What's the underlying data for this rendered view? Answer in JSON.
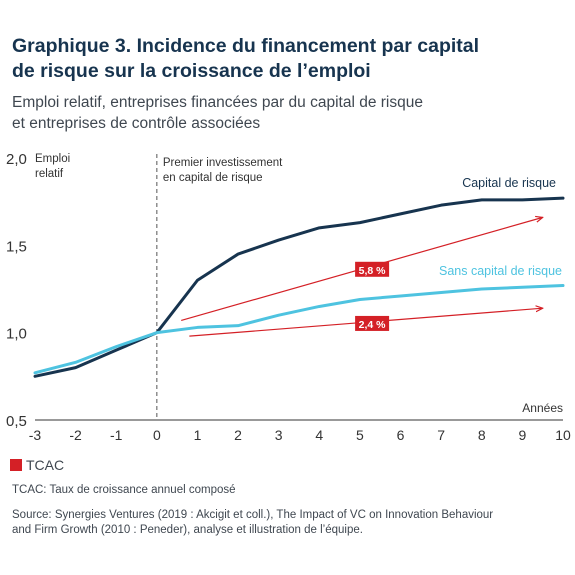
{
  "header": {
    "title_lines": [
      "Graphique 3. Incidence du financement par capital",
      "de risque sur la croissance de l’emploi"
    ],
    "subtitle_lines": [
      "Emploi relatif, entreprises financées par du capital de risque",
      "et entreprises de contrôle associées"
    ]
  },
  "chart_data": {
    "type": "line",
    "x": [
      -3,
      -2,
      -1,
      0,
      1,
      2,
      3,
      4,
      5,
      6,
      7,
      8,
      9,
      10
    ],
    "xlim": [
      -3,
      10
    ],
    "ylim": [
      0.5,
      2.0
    ],
    "xticks": [
      "-3",
      "-2",
      "-1",
      "0",
      "1",
      "2",
      "3",
      "4",
      "5",
      "6",
      "7",
      "8",
      "9",
      "10"
    ],
    "yticks": [
      {
        "value": 2.0,
        "label": "2,0"
      },
      {
        "value": 1.5,
        "label": "1,5"
      },
      {
        "value": 1.0,
        "label": "1,0"
      },
      {
        "value": 0.5,
        "label": "0,5"
      }
    ],
    "ylabel_lines": [
      "Emploi",
      "relatif"
    ],
    "xlabel": "Années",
    "grid": false,
    "series": [
      {
        "name": "Capital de risque",
        "color": "#17344f",
        "values": [
          0.75,
          0.8,
          0.9,
          1.0,
          1.3,
          1.45,
          1.53,
          1.6,
          1.63,
          1.68,
          1.73,
          1.76,
          1.76,
          1.77
        ]
      },
      {
        "name": "Sans capital de risque",
        "color": "#4ec3e0",
        "values": [
          0.77,
          0.83,
          0.92,
          1.0,
          1.03,
          1.04,
          1.1,
          1.15,
          1.19,
          1.21,
          1.23,
          1.25,
          1.26,
          1.27
        ]
      }
    ],
    "vline": {
      "x": 0,
      "label_lines": [
        "Premier investissement",
        "en capital de risque"
      ]
    },
    "annotations": [
      {
        "label": "5,8 %",
        "from": [
          0.6,
          1.07
        ],
        "to": [
          9.5,
          1.66
        ],
        "label_at": [
          5.3,
          1.36
        ]
      },
      {
        "label": "2,4 %",
        "from": [
          0.8,
          0.98
        ],
        "to": [
          9.5,
          1.14
        ],
        "label_at": [
          5.3,
          1.05
        ]
      }
    ],
    "annotation_color": "#d42026"
  },
  "legend": {
    "label": "TCAC"
  },
  "note": "TCAC: Taux de croissance annuel composé",
  "source_lines": [
    "Source: Synergies Ventures (2019 : Akcigit et coll.), The Impact of VC on Innovation Behaviour",
    "and Firm Growth (2010 : Peneder), analyse et illustration de l’équipe."
  ]
}
